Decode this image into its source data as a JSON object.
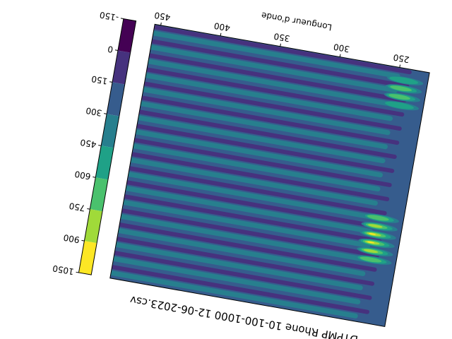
{
  "chart_data": {
    "type": "contourf",
    "title": "DTPMP Rhone 10-100-1000 12-06-2023.csv",
    "xlabel": "Longueur d'onde",
    "xlim": [
      225,
      455
    ],
    "xticks": [
      250,
      300,
      350,
      400,
      450
    ],
    "levels": [
      -150,
      0,
      150,
      300,
      450,
      600,
      750,
      900,
      1050
    ],
    "colors": [
      "#440154",
      "#46327e",
      "#365c8d",
      "#277f8e",
      "#1fa187",
      "#4ac16d",
      "#a0da39",
      "#fde725"
    ]
  }
}
